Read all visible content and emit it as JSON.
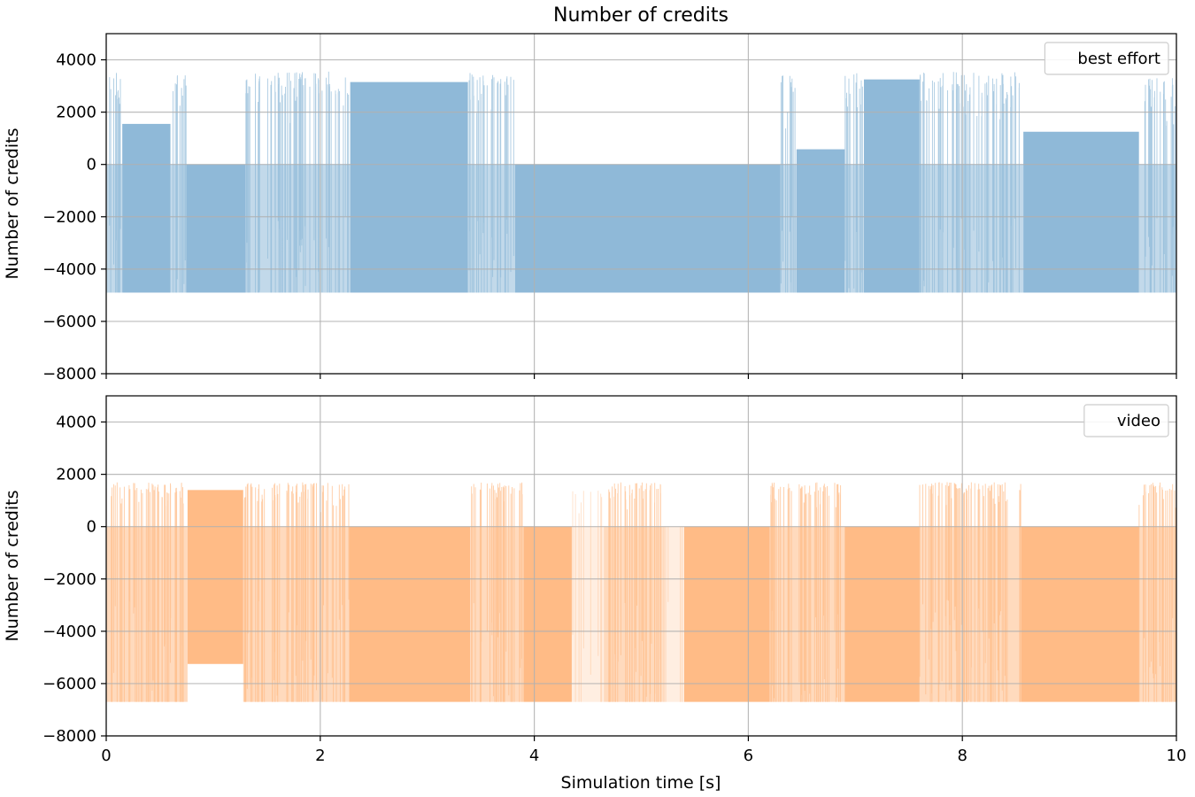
{
  "chart_data": {
    "type": "area",
    "title": "Number of credits",
    "xlabel": "Simulation time [s]",
    "xlim": [
      0,
      10
    ],
    "x_ticks": [
      "0",
      "2",
      "4",
      "6",
      "8",
      "10"
    ],
    "grid": true,
    "panels": [
      {
        "legend": "best effort",
        "legend_position": "top-right",
        "color": "#8fb9d8",
        "ylabel": "Number of credits",
        "ylim": [
          -8000,
          5000
        ],
        "y_ticks": [
          "4000",
          "2000",
          "0",
          "−2000",
          "−4000",
          "−6000",
          "−8000"
        ],
        "show_x_tick_labels": false,
        "floor": -4900,
        "blocks": [
          {
            "x0": 0.0,
            "x1": 0.15,
            "top": 3500,
            "style": "noisy"
          },
          {
            "x0": 0.15,
            "x1": 0.6,
            "top": 1550,
            "style": "solid"
          },
          {
            "x0": 0.6,
            "x1": 0.75,
            "top": 3500,
            "style": "noisy"
          },
          {
            "x0": 0.75,
            "x1": 1.3,
            "top": 0,
            "style": "solid"
          },
          {
            "x0": 1.3,
            "x1": 2.28,
            "top": 3550,
            "style": "noisy"
          },
          {
            "x0": 2.28,
            "x1": 3.38,
            "top": 3150,
            "style": "solid"
          },
          {
            "x0": 3.38,
            "x1": 3.82,
            "top": 3500,
            "style": "noisy"
          },
          {
            "x0": 3.82,
            "x1": 6.3,
            "top": 0,
            "style": "solid"
          },
          {
            "x0": 6.3,
            "x1": 6.45,
            "top": 3400,
            "style": "noisy"
          },
          {
            "x0": 6.45,
            "x1": 6.9,
            "top": 580,
            "style": "solid"
          },
          {
            "x0": 6.9,
            "x1": 7.08,
            "top": 3500,
            "style": "noisy"
          },
          {
            "x0": 7.08,
            "x1": 7.6,
            "top": 3250,
            "style": "solid"
          },
          {
            "x0": 7.6,
            "x1": 8.57,
            "top": 3550,
            "style": "noisy"
          },
          {
            "x0": 8.57,
            "x1": 9.65,
            "top": 1250,
            "style": "solid"
          },
          {
            "x0": 9.65,
            "x1": 10.0,
            "top": 3300,
            "style": "noisy"
          }
        ]
      },
      {
        "legend": "video",
        "legend_position": "top-right",
        "color": "#ffbb86",
        "ylabel": "Number of credits",
        "ylim": [
          -8000,
          5000
        ],
        "y_ticks": [
          "4000",
          "2000",
          "0",
          "−2000",
          "−4000",
          "−6000",
          "−8000"
        ],
        "show_x_tick_labels": true,
        "floor": -6700,
        "blocks": [
          {
            "x0": 0.0,
            "x1": 0.62,
            "top": 1700,
            "style": "noisy"
          },
          {
            "x0": 0.62,
            "x1": 0.76,
            "top": 1700,
            "style": "noisy"
          },
          {
            "x0": 0.76,
            "x1": 1.28,
            "top": 1400,
            "bottom": -5250,
            "style": "solid"
          },
          {
            "x0": 1.28,
            "x1": 2.27,
            "top": 1700,
            "style": "noisy"
          },
          {
            "x0": 2.27,
            "x1": 3.4,
            "top": 0,
            "style": "solid"
          },
          {
            "x0": 3.4,
            "x1": 3.9,
            "top": 1700,
            "style": "noisy"
          },
          {
            "x0": 3.9,
            "x1": 4.35,
            "top": 0,
            "style": "solid"
          },
          {
            "x0": 4.35,
            "x1": 4.65,
            "top": 1400,
            "style": "sparse"
          },
          {
            "x0": 4.65,
            "x1": 5.2,
            "top": 1700,
            "style": "noisy"
          },
          {
            "x0": 5.2,
            "x1": 5.4,
            "top": 0,
            "style": "sparse"
          },
          {
            "x0": 5.4,
            "x1": 6.2,
            "top": 0,
            "style": "solid"
          },
          {
            "x0": 6.2,
            "x1": 6.9,
            "top": 1700,
            "style": "noisy"
          },
          {
            "x0": 6.9,
            "x1": 7.6,
            "top": 0,
            "style": "solid"
          },
          {
            "x0": 7.6,
            "x1": 8.55,
            "top": 1700,
            "style": "noisy"
          },
          {
            "x0": 8.55,
            "x1": 9.65,
            "top": 0,
            "style": "solid"
          },
          {
            "x0": 9.65,
            "x1": 10.0,
            "top": 1700,
            "style": "noisy"
          }
        ]
      }
    ]
  }
}
